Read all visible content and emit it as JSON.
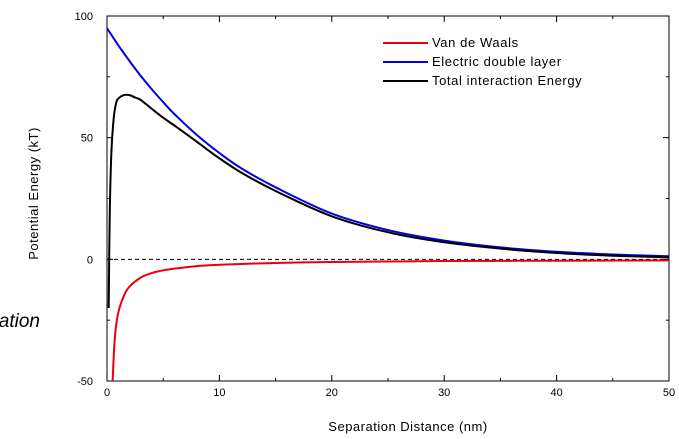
{
  "side_text": "ation",
  "chart_data": {
    "type": "line",
    "title": "",
    "xlabel": "Separation Distance (nm)",
    "ylabel": "Potential Energy (kT)",
    "xlim": [
      0,
      50
    ],
    "ylim": [
      -50,
      100
    ],
    "x_ticks": [
      0,
      10,
      20,
      30,
      40,
      50
    ],
    "y_ticks": [
      -50,
      0,
      50,
      100
    ],
    "x_tick_labels": [
      "0",
      "10",
      "20",
      "30",
      "40",
      "50"
    ],
    "y_tick_labels": [
      "-50",
      "0",
      "50",
      "100"
    ],
    "grid": false,
    "legend_position": "top-right",
    "reference_line": {
      "y": 0,
      "style": "dashed"
    },
    "series": [
      {
        "name": "Van de Waals",
        "color": "#e8000b",
        "x": [
          0.5,
          0.7,
          1,
          1.5,
          2,
          3,
          4,
          5,
          6,
          8,
          10,
          15,
          20,
          25,
          30,
          40,
          50
        ],
        "y": [
          -50,
          -32,
          -22,
          -15,
          -11.2,
          -7.5,
          -5.6,
          -4.5,
          -3.8,
          -2.8,
          -2.2,
          -1.5,
          -1.1,
          -0.9,
          -0.7,
          -0.55,
          -0.45
        ]
      },
      {
        "name": "Electric double layer",
        "color": "#0000e0",
        "x": [
          0,
          1,
          2,
          3,
          4,
          5,
          6,
          8,
          10,
          12,
          15,
          20,
          25,
          30,
          35,
          40,
          45,
          50
        ],
        "y": [
          95,
          88,
          81.5,
          75.4,
          69.8,
          64.6,
          59.7,
          51.1,
          43.7,
          37.3,
          29.6,
          18.8,
          12,
          7.7,
          4.9,
          3.1,
          2,
          1.3
        ]
      },
      {
        "name": "Total interaction Energy",
        "color": "#000000",
        "x": [
          0.15,
          0.25,
          0.4,
          0.6,
          0.8,
          1,
          1.5,
          2,
          2.5,
          3,
          4,
          5,
          6,
          8,
          10,
          12,
          15,
          20,
          25,
          30,
          35,
          40,
          45,
          50
        ],
        "y": [
          -20,
          20,
          45,
          58,
          64,
          66,
          67.5,
          67.5,
          66.5,
          65.5,
          61.8,
          58.2,
          55,
          48.3,
          41.5,
          35.5,
          28.1,
          17.7,
          11.1,
          7,
          4.4,
          2.6,
          1.5,
          0.8
        ]
      }
    ]
  }
}
